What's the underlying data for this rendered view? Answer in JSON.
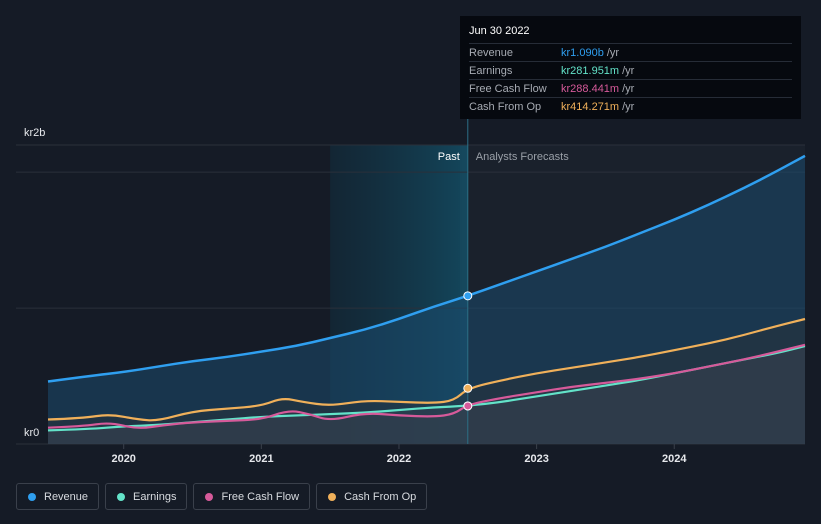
{
  "tooltip": {
    "date": "Jun 30 2022",
    "rows": [
      {
        "label": "Revenue",
        "value": "kr1.090b",
        "unit": "/yr",
        "color": "#2f9ff0"
      },
      {
        "label": "Earnings",
        "value": "kr281.951m",
        "unit": "/yr",
        "color": "#63e3c9"
      },
      {
        "label": "Free Cash Flow",
        "value": "kr288.441m",
        "unit": "/yr",
        "color": "#d65a9a"
      },
      {
        "label": "Cash From Op",
        "value": "kr414.271m",
        "unit": "/yr",
        "color": "#f0b05a"
      }
    ]
  },
  "legend": [
    {
      "label": "Revenue",
      "color": "#2f9ff0"
    },
    {
      "label": "Earnings",
      "color": "#63e3c9"
    },
    {
      "label": "Free Cash Flow",
      "color": "#d65a9a"
    },
    {
      "label": "Cash From Op",
      "color": "#f0b05a"
    }
  ],
  "chart_data": {
    "type": "line",
    "y_unit_labels": {
      "top": "kr2b",
      "bottom": "kr0"
    },
    "ylim": [
      0,
      2.2
    ],
    "xlim": [
      2019.45,
      2024.95
    ],
    "x_ticks": [
      {
        "value": 2020,
        "label": "2020"
      },
      {
        "value": 2021,
        "label": "2021"
      },
      {
        "value": 2022,
        "label": "2022"
      },
      {
        "value": 2023,
        "label": "2023"
      },
      {
        "value": 2024,
        "label": "2024"
      }
    ],
    "gridlines": [
      1.0,
      2.0
    ],
    "past_label": "Past",
    "forecast_label": "Analysts Forecasts",
    "divider_x": 2022.5,
    "highlight_start_x": 2021.5,
    "series": [
      {
        "name": "Revenue",
        "color": "#2f9ff0",
        "x": [
          2019.45,
          2019.75,
          2020.0,
          2020.25,
          2020.5,
          2020.75,
          2021.0,
          2021.25,
          2021.5,
          2021.75,
          2022.0,
          2022.25,
          2022.5,
          2022.75,
          2023.0,
          2023.25,
          2023.5,
          2023.75,
          2024.0,
          2024.25,
          2024.5,
          2024.75,
          2024.95
        ],
        "values": [
          0.46,
          0.5,
          0.53,
          0.57,
          0.61,
          0.64,
          0.68,
          0.72,
          0.78,
          0.84,
          0.92,
          1.01,
          1.09,
          1.18,
          1.27,
          1.36,
          1.45,
          1.55,
          1.65,
          1.76,
          1.88,
          2.01,
          2.12
        ]
      },
      {
        "name": "Earnings",
        "color": "#63e3c9",
        "x": [
          2019.45,
          2019.75,
          2020.0,
          2020.25,
          2020.5,
          2020.75,
          2021.0,
          2021.25,
          2021.5,
          2021.75,
          2022.0,
          2022.25,
          2022.5,
          2022.75,
          2023.0,
          2023.25,
          2023.5,
          2023.75,
          2024.0,
          2024.25,
          2024.5,
          2024.75,
          2024.95
        ],
        "values": [
          0.1,
          0.11,
          0.13,
          0.14,
          0.16,
          0.18,
          0.2,
          0.21,
          0.22,
          0.23,
          0.25,
          0.27,
          0.28,
          0.31,
          0.35,
          0.39,
          0.43,
          0.47,
          0.52,
          0.57,
          0.62,
          0.67,
          0.72
        ]
      },
      {
        "name": "Free Cash Flow",
        "color": "#d65a9a",
        "x": [
          2019.45,
          2019.7,
          2019.9,
          2020.1,
          2020.3,
          2020.5,
          2020.75,
          2021.0,
          2021.2,
          2021.35,
          2021.5,
          2021.75,
          2022.0,
          2022.25,
          2022.4,
          2022.5,
          2022.75,
          2023.0,
          2023.25,
          2023.5,
          2023.75,
          2024.0,
          2024.25,
          2024.5,
          2024.75,
          2024.95
        ],
        "values": [
          0.12,
          0.13,
          0.16,
          0.11,
          0.14,
          0.16,
          0.17,
          0.18,
          0.25,
          0.22,
          0.17,
          0.23,
          0.21,
          0.2,
          0.22,
          0.29,
          0.34,
          0.38,
          0.42,
          0.45,
          0.48,
          0.52,
          0.57,
          0.62,
          0.68,
          0.73
        ]
      },
      {
        "name": "Cash From Op",
        "color": "#f0b05a",
        "x": [
          2019.45,
          2019.7,
          2019.9,
          2020.1,
          2020.25,
          2020.5,
          2020.75,
          2021.0,
          2021.15,
          2021.3,
          2021.5,
          2021.75,
          2022.0,
          2022.25,
          2022.4,
          2022.5,
          2022.75,
          2023.0,
          2023.25,
          2023.5,
          2023.75,
          2024.0,
          2024.25,
          2024.5,
          2024.75,
          2024.95
        ],
        "values": [
          0.18,
          0.19,
          0.22,
          0.18,
          0.17,
          0.24,
          0.26,
          0.28,
          0.34,
          0.31,
          0.28,
          0.32,
          0.31,
          0.3,
          0.32,
          0.41,
          0.47,
          0.52,
          0.56,
          0.6,
          0.64,
          0.69,
          0.74,
          0.8,
          0.87,
          0.92
        ]
      }
    ],
    "markers": [
      {
        "series": "Revenue",
        "x": 2022.5,
        "y": 1.09
      },
      {
        "series": "Cash From Op",
        "x": 2022.5,
        "y": 0.41
      },
      {
        "series": "Earnings",
        "x": 2022.5,
        "y": 0.28
      }
    ]
  }
}
